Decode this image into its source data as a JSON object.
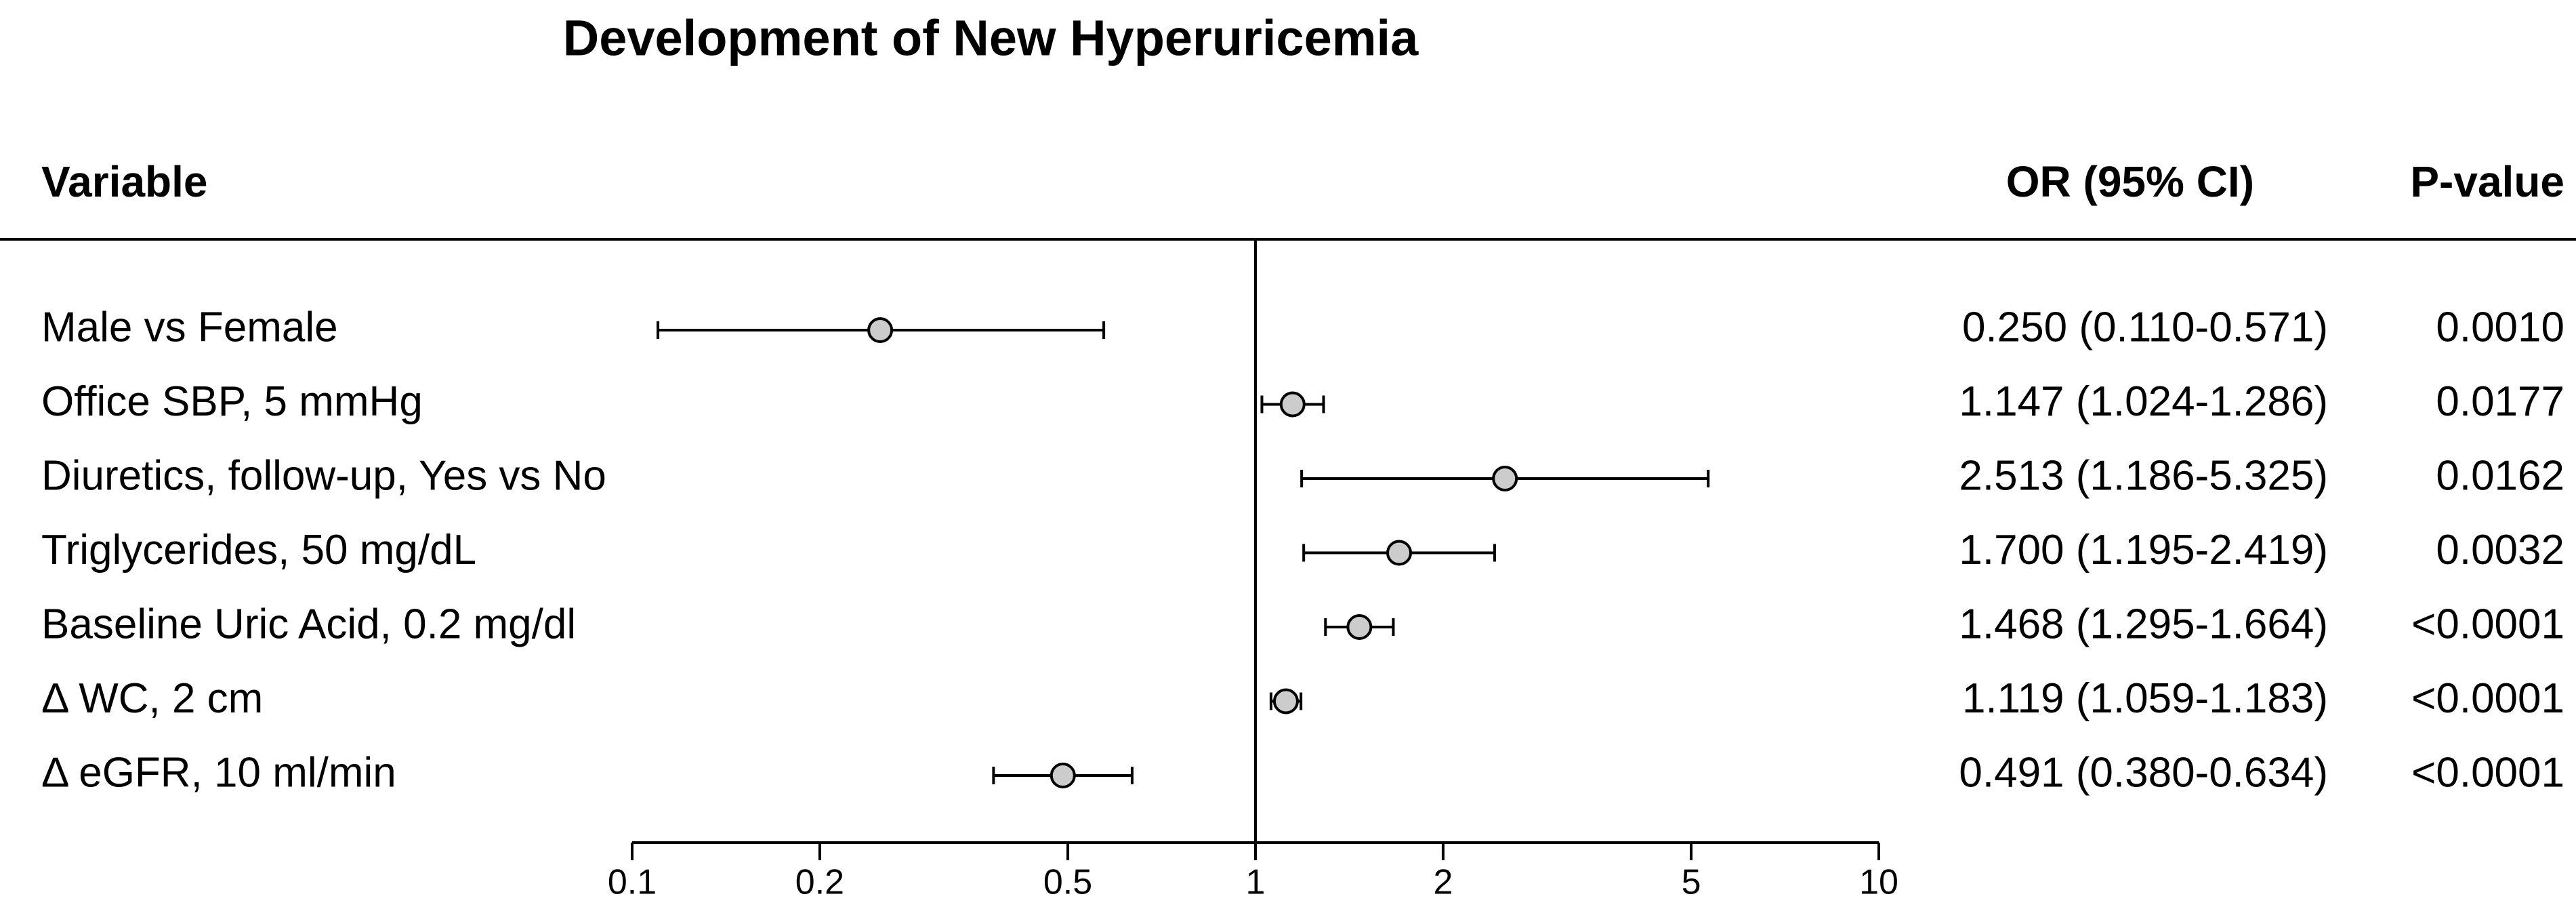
{
  "chart_data": {
    "type": "forest",
    "title": "Development of New Hyperuricemia",
    "headers": {
      "variable": "Variable",
      "estimate": "OR (95% CI)",
      "p": "P-value"
    },
    "categories": [
      "Male vs Female",
      "Office SBP, 5 mmHg",
      "Diuretics, follow-up, Yes vs No",
      "Triglycerides, 50 mg/dL",
      "Baseline Uric Acid, 0.2 mg/dl",
      "Δ WC, 2 cm",
      "Δ eGFR, 10 ml/min"
    ],
    "values": [
      0.25,
      1.147,
      2.513,
      1.7,
      1.468,
      1.119,
      0.491
    ],
    "lower": [
      0.11,
      1.024,
      1.186,
      1.195,
      1.295,
      1.059,
      0.38
    ],
    "upper": [
      0.571,
      1.286,
      5.325,
      2.419,
      1.664,
      1.183,
      0.634
    ],
    "value_labels": [
      "0.250 (0.110-0.571)",
      "1.147 (1.024-1.286)",
      "2.513 (1.186-5.325)",
      "1.700 (1.195-2.419)",
      "1.468 (1.295-1.664)",
      "1.119 (1.059-1.183)",
      "0.491 (0.380-0.634)"
    ],
    "p_values": [
      "0.0010",
      "0.0177",
      "0.0162",
      "0.0032",
      "<0.0001",
      "<0.0001",
      "<0.0001"
    ],
    "xscale": "log",
    "xlim": [
      0.1,
      10
    ],
    "xticks": [
      0.1,
      0.2,
      0.5,
      1,
      2,
      5,
      10
    ],
    "reference": 1,
    "marker_color": "#cccccc"
  }
}
